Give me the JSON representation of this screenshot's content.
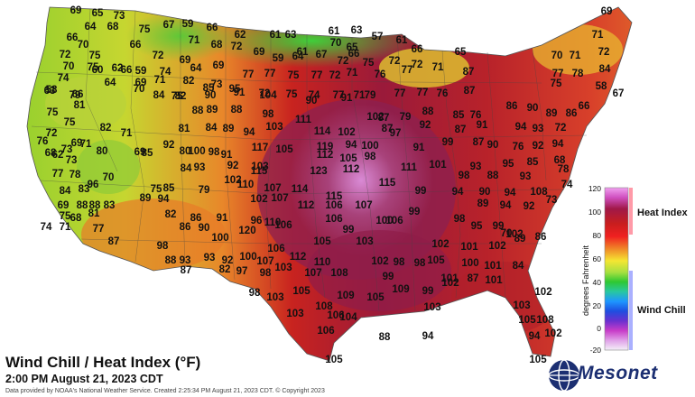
{
  "map": {
    "title": "Wind Chill / Heat Index (°F)",
    "subtitle": "2:00 PM August 21, 2023 CDT",
    "credit": "Data provided by NOAA's National Weather Service. Created 2:25:34 PM August 21, 2023 CDT. © Copyright 2023",
    "logo_text": "Mesonet",
    "legend": {
      "axis_title": "degrees Fahrenheit",
      "heat_index_label": "Heat Index",
      "wind_chill_label": "Wind Chill",
      "ticks": [
        "120",
        "100",
        "80",
        "60",
        "40",
        "20",
        "0",
        "-20"
      ],
      "colors": {
        "hot": "#c81e1e",
        "warm": "#f08c28",
        "mild": "#f5e632",
        "cool": "#5ad23c",
        "cold_blue": "#1e96ff",
        "purple": "#c83cc8",
        "heat_bar": "#ff9aa8",
        "chill_bar": "#aab0ff"
      }
    },
    "stations": [
      {
        "v": "69"
      },
      {
        "v": "65"
      },
      {
        "v": "73"
      },
      {
        "v": "64"
      },
      {
        "v": "68"
      },
      {
        "v": "75"
      },
      {
        "v": "67"
      },
      {
        "v": "59"
      },
      {
        "v": "66"
      },
      {
        "v": "62"
      },
      {
        "v": "61"
      },
      {
        "v": "63"
      },
      {
        "v": "61"
      },
      {
        "v": "63"
      },
      {
        "v": "57"
      },
      {
        "v": "69"
      },
      {
        "v": "66"
      },
      {
        "v": "70"
      },
      {
        "v": "71"
      },
      {
        "v": "68"
      },
      {
        "v": "66"
      },
      {
        "v": "72"
      },
      {
        "v": "69"
      },
      {
        "v": "61"
      },
      {
        "v": "70"
      },
      {
        "v": "65"
      },
      {
        "v": "66"
      },
      {
        "v": "61"
      },
      {
        "v": "66"
      },
      {
        "v": "65"
      },
      {
        "v": "71"
      },
      {
        "v": "72"
      },
      {
        "v": "75"
      },
      {
        "v": "60"
      },
      {
        "v": "66"
      },
      {
        "v": "58"
      },
      {
        "v": "66"
      },
      {
        "v": "72"
      },
      {
        "v": "69"
      },
      {
        "v": "59"
      },
      {
        "v": "64"
      },
      {
        "v": "67"
      },
      {
        "v": "72"
      },
      {
        "v": "75"
      },
      {
        "v": "72"
      },
      {
        "v": "70"
      },
      {
        "v": "71"
      },
      {
        "v": "72"
      },
      {
        "v": "84"
      },
      {
        "v": "70"
      },
      {
        "v": "75"
      },
      {
        "v": "62"
      },
      {
        "v": "59"
      },
      {
        "v": "74"
      },
      {
        "v": "64"
      },
      {
        "v": "69"
      },
      {
        "v": "77"
      },
      {
        "v": "77"
      },
      {
        "v": "75"
      },
      {
        "v": "77"
      },
      {
        "v": "72"
      },
      {
        "v": "71"
      },
      {
        "v": "76"
      },
      {
        "v": "72"
      },
      {
        "v": "71"
      },
      {
        "v": "77"
      },
      {
        "v": "74"
      },
      {
        "v": "64"
      },
      {
        "v": "71"
      },
      {
        "v": "82"
      },
      {
        "v": "73"
      },
      {
        "v": "69"
      },
      {
        "v": "75"
      },
      {
        "v": "90"
      },
      {
        "v": "91"
      },
      {
        "v": "72"
      },
      {
        "v": "75"
      },
      {
        "v": "74"
      },
      {
        "v": "77"
      },
      {
        "v": "71"
      },
      {
        "v": "77"
      },
      {
        "v": "87"
      },
      {
        "v": "78"
      },
      {
        "v": "58"
      },
      {
        "v": "63"
      },
      {
        "v": "79"
      },
      {
        "v": "70"
      },
      {
        "v": "84"
      },
      {
        "v": "82"
      },
      {
        "v": "85"
      },
      {
        "v": "95"
      },
      {
        "v": "104"
      },
      {
        "v": "90"
      },
      {
        "v": "91"
      },
      {
        "v": "79"
      },
      {
        "v": "77"
      },
      {
        "v": "77"
      },
      {
        "v": "76"
      },
      {
        "v": "87"
      },
      {
        "v": "75"
      },
      {
        "v": "67"
      },
      {
        "v": "75"
      },
      {
        "v": "81"
      },
      {
        "v": "88"
      },
      {
        "v": "89"
      },
      {
        "v": "88"
      },
      {
        "v": "98"
      },
      {
        "v": "111"
      },
      {
        "v": "102"
      },
      {
        "v": "87"
      },
      {
        "v": "79"
      },
      {
        "v": "88"
      },
      {
        "v": "85"
      },
      {
        "v": "76"
      },
      {
        "v": "86"
      },
      {
        "v": "90"
      },
      {
        "v": "89"
      },
      {
        "v": "86"
      },
      {
        "v": "66"
      },
      {
        "v": "72"
      },
      {
        "v": "75"
      },
      {
        "v": "82"
      },
      {
        "v": "71"
      },
      {
        "v": "81"
      },
      {
        "v": "84"
      },
      {
        "v": "89"
      },
      {
        "v": "94"
      },
      {
        "v": "103"
      },
      {
        "v": "114"
      },
      {
        "v": "102"
      },
      {
        "v": "87"
      },
      {
        "v": "92"
      },
      {
        "v": "87"
      },
      {
        "v": "91"
      },
      {
        "v": "94"
      },
      {
        "v": "93"
      },
      {
        "v": "72"
      },
      {
        "v": "76"
      },
      {
        "v": "68"
      },
      {
        "v": "73"
      },
      {
        "v": "69"
      },
      {
        "v": "71"
      },
      {
        "v": "80"
      },
      {
        "v": "85"
      },
      {
        "v": "92"
      },
      {
        "v": "100"
      },
      {
        "v": "98"
      },
      {
        "v": "117"
      },
      {
        "v": "105"
      },
      {
        "v": "119"
      },
      {
        "v": "94"
      },
      {
        "v": "100"
      },
      {
        "v": "97"
      },
      {
        "v": "99"
      },
      {
        "v": "87"
      },
      {
        "v": "90"
      },
      {
        "v": "76"
      },
      {
        "v": "62"
      },
      {
        "v": "73"
      },
      {
        "v": "69"
      },
      {
        "v": "80"
      },
      {
        "v": "91"
      },
      {
        "v": "92"
      },
      {
        "v": "115"
      },
      {
        "v": "112"
      },
      {
        "v": "105"
      },
      {
        "v": "98"
      },
      {
        "v": "91"
      },
      {
        "v": "92"
      },
      {
        "v": "94"
      },
      {
        "v": "68"
      },
      {
        "v": "77"
      },
      {
        "v": "78"
      },
      {
        "v": "84"
      },
      {
        "v": "93"
      },
      {
        "v": "103"
      },
      {
        "v": "123"
      },
      {
        "v": "112"
      },
      {
        "v": "111"
      },
      {
        "v": "101"
      },
      {
        "v": "93"
      },
      {
        "v": "95"
      },
      {
        "v": "85"
      },
      {
        "v": "70"
      },
      {
        "v": "96"
      },
      {
        "v": "110"
      },
      {
        "v": "98"
      },
      {
        "v": "88"
      },
      {
        "v": "93"
      },
      {
        "v": "78"
      },
      {
        "v": "84"
      },
      {
        "v": "83"
      },
      {
        "v": "75"
      },
      {
        "v": "85"
      },
      {
        "v": "79"
      },
      {
        "v": "102"
      },
      {
        "v": "107"
      },
      {
        "v": "114"
      },
      {
        "v": "115"
      },
      {
        "v": "99"
      },
      {
        "v": "94"
      },
      {
        "v": "90"
      },
      {
        "v": "94"
      },
      {
        "v": "108"
      },
      {
        "v": "74"
      },
      {
        "v": "69"
      },
      {
        "v": "88"
      },
      {
        "v": "88"
      },
      {
        "v": "83"
      },
      {
        "v": "89"
      },
      {
        "v": "94"
      },
      {
        "v": "102"
      },
      {
        "v": "107"
      },
      {
        "v": "112"
      },
      {
        "v": "115"
      },
      {
        "v": "107"
      },
      {
        "v": "106"
      },
      {
        "v": "99"
      },
      {
        "v": "98"
      },
      {
        "v": "89"
      },
      {
        "v": "94"
      },
      {
        "v": "92"
      },
      {
        "v": "73"
      },
      {
        "v": "75"
      },
      {
        "v": "68"
      },
      {
        "v": "81"
      },
      {
        "v": "82"
      },
      {
        "v": "86"
      },
      {
        "v": "91"
      },
      {
        "v": "96"
      },
      {
        "v": "110"
      },
      {
        "v": "106"
      },
      {
        "v": "106"
      },
      {
        "v": "100"
      },
      {
        "v": "70"
      },
      {
        "v": "74"
      },
      {
        "v": "71"
      },
      {
        "v": "77"
      },
      {
        "v": "86"
      },
      {
        "v": "90"
      },
      {
        "v": "100"
      },
      {
        "v": "120"
      },
      {
        "v": "106"
      },
      {
        "v": "99"
      },
      {
        "v": "95"
      },
      {
        "v": "99"
      },
      {
        "v": "102"
      },
      {
        "v": "86"
      },
      {
        "v": "87"
      },
      {
        "v": "98"
      },
      {
        "v": "106"
      },
      {
        "v": "105"
      },
      {
        "v": "103"
      },
      {
        "v": "102"
      },
      {
        "v": "101"
      },
      {
        "v": "102"
      },
      {
        "v": "89"
      },
      {
        "v": "88"
      },
      {
        "v": "93"
      },
      {
        "v": "93"
      },
      {
        "v": "92"
      },
      {
        "v": "100"
      },
      {
        "v": "107"
      },
      {
        "v": "112"
      },
      {
        "v": "110"
      },
      {
        "v": "102"
      },
      {
        "v": "98"
      },
      {
        "v": "105"
      },
      {
        "v": "100"
      },
      {
        "v": "101"
      },
      {
        "v": "84"
      },
      {
        "v": "87"
      },
      {
        "v": "82"
      },
      {
        "v": "97"
      },
      {
        "v": "98"
      },
      {
        "v": "103"
      },
      {
        "v": "107"
      },
      {
        "v": "108"
      },
      {
        "v": "99"
      },
      {
        "v": "98"
      },
      {
        "v": "101"
      },
      {
        "v": "87"
      },
      {
        "v": "98"
      },
      {
        "v": "103"
      },
      {
        "v": "105"
      },
      {
        "v": "109"
      },
      {
        "v": "105"
      },
      {
        "v": "109"
      },
      {
        "v": "99"
      },
      {
        "v": "102"
      },
      {
        "v": "101"
      },
      {
        "v": "103"
      },
      {
        "v": "108"
      },
      {
        "v": "103"
      },
      {
        "v": "103"
      },
      {
        "v": "102"
      },
      {
        "v": "104"
      },
      {
        "v": "106"
      },
      {
        "v": "105"
      },
      {
        "v": "108"
      },
      {
        "v": "106"
      },
      {
        "v": "88"
      },
      {
        "v": "94"
      },
      {
        "v": "94"
      },
      {
        "v": "102"
      },
      {
        "v": "105"
      },
      {
        "v": "105"
      }
    ]
  }
}
